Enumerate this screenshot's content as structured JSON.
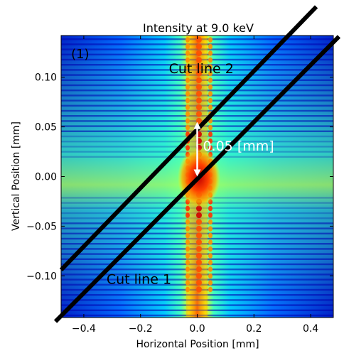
{
  "chart_data": {
    "type": "heatmap",
    "title": "Intensity at 9.0 keV",
    "xlabel": "Horizontal Position [mm]",
    "ylabel": "Vertical Position [mm]",
    "xlim": [
      -0.48,
      0.48
    ],
    "ylim": [
      -0.142,
      0.142
    ],
    "x_ticks": [
      -0.4,
      -0.2,
      0.0,
      0.2,
      0.4
    ],
    "x_tick_labels": [
      "−0.4",
      "−0.2",
      "0.0",
      "0.2",
      "0.4"
    ],
    "y_ticks": [
      0.1,
      0.05,
      0.0,
      -0.05,
      -0.1
    ],
    "y_tick_labels": [
      "0.10",
      "0.05",
      "0.00",
      "−0.05",
      "−0.10"
    ],
    "colormap": "jet",
    "panel_label": "(1)",
    "cut_lines": [
      {
        "name": "Cut line 2",
        "x": [
          -0.48,
          0.42
        ],
        "y": [
          -0.094,
          0.171
        ]
      },
      {
        "name": "Cut line 1",
        "x": [
          -0.5,
          0.5
        ],
        "y": [
          -0.146,
          0.141
        ]
      }
    ],
    "annotations": [
      {
        "text": "Cut line 2",
        "x": -0.1,
        "y": 0.104
      },
      {
        "text": "Cut line 1",
        "x": -0.32,
        "y": -0.108
      },
      {
        "text": "0.05 [mm]",
        "x": 0.02,
        "y": 0.026
      }
    ],
    "arrow": {
      "x": 0.0,
      "y_from": 0.0,
      "y_to": 0.055
    },
    "colors": {
      "cut_line": "#000000",
      "arrow": "#ffffff",
      "label_white": "#ffffff"
    }
  }
}
